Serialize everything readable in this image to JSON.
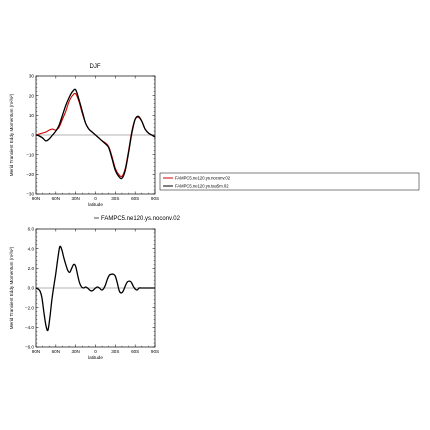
{
  "top_title": "DJF",
  "diff_label": "FAMPC5.ne120.ys.noconv.02",
  "chart_data": [
    {
      "type": "line",
      "title": "DJF",
      "xlabel": "latitude",
      "ylabel": "Merid Transient Eddy Momentum (m²/s²)",
      "xlim": [
        -90,
        90
      ],
      "ylim": [
        -30,
        30
      ],
      "x_ticks": [
        -90,
        -60,
        -30,
        0,
        30,
        60,
        90
      ],
      "x_tick_labels": [
        "90N",
        "60N",
        "30N",
        "0",
        "30S",
        "60S",
        "90S"
      ],
      "y_ticks": [
        -30,
        -20,
        -10,
        0,
        10,
        20,
        30
      ],
      "y_tick_labels": [
        "−30",
        "−20",
        "−10",
        "0",
        "10",
        "20",
        "30"
      ],
      "grid": false,
      "legend_position": "right",
      "series": [
        {
          "name": "FAMPC5.ne120.ys.noconv.02",
          "color": "#cc0000",
          "x": [
            -90,
            -85,
            -80,
            -75,
            -70,
            -65,
            -60,
            -55,
            -50,
            -45,
            -40,
            -35,
            -30,
            -25,
            -20,
            -15,
            -10,
            -5,
            0,
            5,
            10,
            15,
            20,
            25,
            30,
            35,
            40,
            45,
            50,
            55,
            60,
            65,
            70,
            75,
            80,
            85,
            90
          ],
          "values": [
            0,
            0.5,
            1,
            1.5,
            2.5,
            3,
            2.5,
            4,
            8,
            12,
            17,
            20,
            21,
            17,
            11,
            6,
            3,
            1.5,
            0,
            -1.5,
            -3,
            -4,
            -6,
            -11,
            -17,
            -20,
            -21,
            -17,
            -8,
            2,
            8,
            9,
            7,
            3,
            1,
            0,
            -1
          ]
        },
        {
          "name": "FAMPC5.ne120.ys.tau5m.02",
          "color": "#000000",
          "x": [
            -90,
            -85,
            -80,
            -75,
            -70,
            -65,
            -60,
            -55,
            -50,
            -45,
            -40,
            -35,
            -30,
            -25,
            -20,
            -15,
            -10,
            -5,
            0,
            5,
            10,
            15,
            20,
            25,
            30,
            35,
            40,
            45,
            50,
            55,
            60,
            65,
            70,
            75,
            80,
            85,
            90
          ],
          "values": [
            0,
            -0.5,
            -1.5,
            -3,
            -2,
            0,
            2,
            5,
            10,
            15,
            19,
            22,
            23,
            18,
            12,
            6,
            3,
            1.5,
            0,
            -1.5,
            -3,
            -4.5,
            -6.5,
            -12,
            -18,
            -21,
            -22,
            -18,
            -9,
            1,
            8,
            9.5,
            7,
            3,
            1,
            0,
            -1
          ]
        }
      ]
    },
    {
      "type": "line",
      "title": "",
      "xlabel": "latitude",
      "ylabel": "Merid Transient Eddy Momentum (m²/s²)",
      "xlim": [
        -90,
        90
      ],
      "ylim": [
        -6,
        6
      ],
      "x_ticks": [
        -90,
        -60,
        -30,
        0,
        30,
        60,
        90
      ],
      "x_tick_labels": [
        "90N",
        "60N",
        "30N",
        "0",
        "30S",
        "60S",
        "90S"
      ],
      "y_ticks": [
        -6,
        -4,
        -2,
        0,
        2,
        4,
        6
      ],
      "y_tick_labels": [
        "−6.0",
        "−4.0",
        "−2.0",
        "0.0",
        "2.0",
        "4.0",
        "6.0"
      ],
      "grid": false,
      "series": [
        {
          "name": "FAMPC5.ne120.ys.noconv.02",
          "color": "#000000",
          "x": [
            -90,
            -87,
            -84,
            -81,
            -78,
            -75,
            -72,
            -69,
            -66,
            -63,
            -60,
            -57,
            -54,
            -51,
            -48,
            -45,
            -42,
            -39,
            -36,
            -33,
            -30,
            -27,
            -24,
            -21,
            -18,
            -15,
            -12,
            -9,
            -6,
            -3,
            0,
            3,
            6,
            9,
            12,
            15,
            18,
            21,
            24,
            27,
            30,
            33,
            36,
            39,
            42,
            45,
            48,
            51,
            54,
            57,
            60,
            63,
            66,
            69,
            72,
            75,
            78,
            81,
            84,
            87,
            90
          ],
          "values": [
            0,
            -0.1,
            -0.3,
            -1.0,
            -2.5,
            -3.8,
            -4.3,
            -3.0,
            -1.2,
            0.2,
            1.5,
            3.0,
            4.2,
            3.9,
            3.1,
            2.4,
            1.8,
            1.6,
            2.0,
            2.4,
            2.2,
            1.3,
            0.5,
            0.1,
            0.0,
            0.1,
            0.0,
            -0.2,
            -0.3,
            -0.2,
            0.0,
            0.1,
            0.0,
            -0.2,
            -0.1,
            0.3,
            0.9,
            1.3,
            1.4,
            1.4,
            1.2,
            0.5,
            -0.3,
            -0.5,
            -0.3,
            0.2,
            0.6,
            0.7,
            0.6,
            0.2,
            -0.1,
            -0.2,
            0.0,
            0.0,
            0.0,
            0.0,
            0.0,
            0.0,
            0.0,
            0.0,
            0.0
          ]
        }
      ]
    }
  ]
}
